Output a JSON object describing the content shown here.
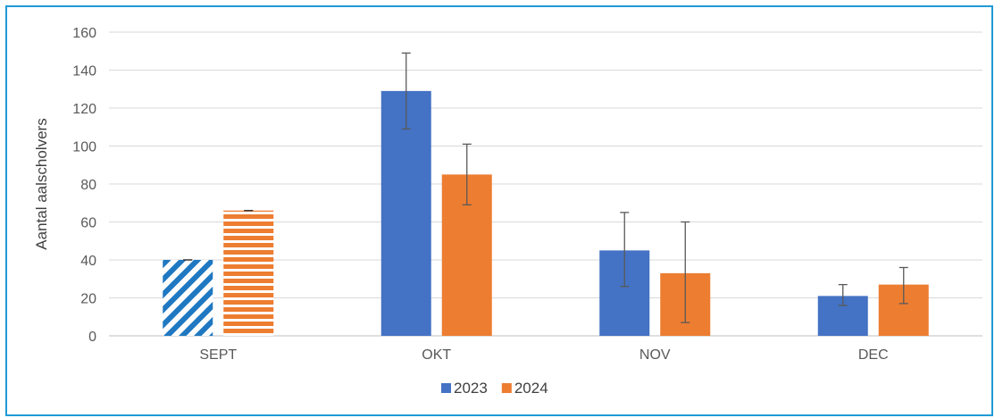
{
  "chart_data": {
    "type": "bar",
    "title": "",
    "xlabel": "",
    "ylabel": "Aantal aalscholvers",
    "categories": [
      "SEPT",
      "OKT",
      "NOV",
      "DEC"
    ],
    "ylim": [
      0,
      160
    ],
    "yticks": [
      0,
      20,
      40,
      60,
      80,
      100,
      120,
      140,
      160
    ],
    "grid": true,
    "legend_position": "bottom",
    "series": [
      {
        "name": "2023",
        "color": "#4472c4",
        "values": [
          40,
          129,
          45,
          21
        ],
        "error_low": [
          40,
          109,
          26,
          16
        ],
        "error_high": [
          40,
          149,
          65,
          27
        ],
        "patterned": [
          true,
          false,
          false,
          false
        ],
        "pattern": "diagonal-stripes"
      },
      {
        "name": "2024",
        "color": "#ed7d31",
        "values": [
          66,
          85,
          33,
          27
        ],
        "error_low": [
          66,
          69,
          7,
          17
        ],
        "error_high": [
          66,
          101,
          60,
          36
        ],
        "patterned": [
          true,
          false,
          false,
          false
        ],
        "pattern": "horizontal-stripes"
      }
    ]
  }
}
